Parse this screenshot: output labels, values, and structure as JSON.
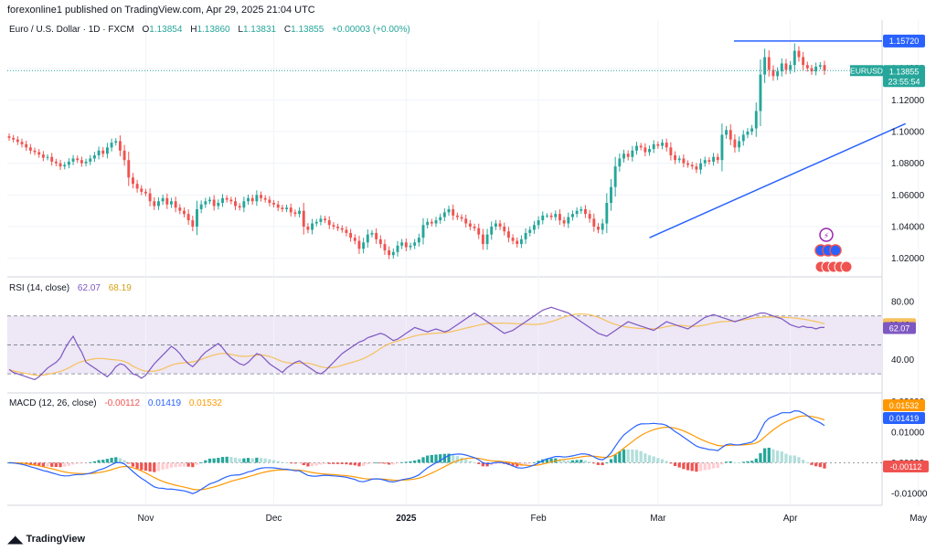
{
  "publish_line": "forexonline1 published on TradingView.com, Apr 29, 2025 21:04 UTC",
  "logo_text": "TradingView",
  "legend": {
    "symbol": "Euro / U.S. Dollar · 1D · FXCM",
    "o_label": "O",
    "o": "1.13854",
    "h_label": "H",
    "h": "1.13860",
    "l_label": "L",
    "l": "1.13831",
    "c_label": "C",
    "c": "1.13855",
    "change": "+0.00003 (+0.00%)"
  },
  "rsi_legend": {
    "name": "RSI (14, close)",
    "v1": "62.07",
    "v2": "68.19"
  },
  "macd_legend": {
    "name": "MACD (12, 26, close)",
    "v1": "-0.00112",
    "v2": "0.01419",
    "v3": "0.01532"
  },
  "price_tag": {
    "symbol": "EURUSD",
    "price": "1.13855",
    "countdown": "23:55:54"
  },
  "resistance_tag": "1.15720",
  "rsi_tags": [
    "68.19",
    "62.07"
  ],
  "macd_tags": [
    "0.01532",
    "0.01419",
    "-0.00112"
  ],
  "colors": {
    "up": "#26a69a",
    "down": "#ef5350",
    "trendline": "#2962ff",
    "rsi_line": "#7e57c2",
    "rsi_ma": "#f7c15a",
    "macd_line": "#2962ff",
    "signal_line": "#ff9800",
    "rsi_band": "#ede7f6"
  },
  "chart_data": [
    {
      "type": "candlestick",
      "symbol": "EURUSD",
      "y_ticks": [
        "1.02000",
        "1.04000",
        "1.06000",
        "1.08000",
        "1.10000",
        "1.12000",
        "1.14000"
      ],
      "ylim": [
        1.01,
        1.16
      ],
      "x_ticks": [
        "Nov",
        "Dec",
        "2025",
        "Feb",
        "Mar",
        "Apr",
        "May"
      ],
      "x_tick_days": [
        32,
        62,
        93,
        124,
        152,
        183,
        213
      ],
      "resistance": 1.1572,
      "trendline": [
        [
          150,
          1.033
        ],
        [
          210,
          1.105
        ]
      ],
      "closes": [
        1.096,
        1.095,
        1.0935,
        1.092,
        1.09,
        1.088,
        1.087,
        1.0855,
        1.0835,
        1.084,
        1.081,
        1.08,
        1.078,
        1.079,
        1.081,
        1.083,
        1.082,
        1.08,
        1.081,
        1.083,
        1.085,
        1.088,
        1.086,
        1.09,
        1.093,
        1.094,
        1.088,
        1.082,
        1.071,
        1.067,
        1.064,
        1.062,
        1.061,
        1.056,
        1.053,
        1.056,
        1.058,
        1.054,
        1.056,
        1.052,
        1.05,
        1.048,
        1.044,
        1.04,
        1.051,
        1.054,
        1.056,
        1.057,
        1.053,
        1.055,
        1.058,
        1.057,
        1.056,
        1.053,
        1.052,
        1.056,
        1.058,
        1.056,
        1.06,
        1.058,
        1.057,
        1.055,
        1.054,
        1.052,
        1.051,
        1.052,
        1.049,
        1.048,
        1.05,
        1.04,
        1.038,
        1.042,
        1.043,
        1.045,
        1.044,
        1.041,
        1.04,
        1.039,
        1.038,
        1.036,
        1.033,
        1.031,
        1.026,
        1.03,
        1.035,
        1.036,
        1.032,
        1.029,
        1.025,
        1.022,
        1.024,
        1.028,
        1.03,
        1.027,
        1.028,
        1.03,
        1.033,
        1.041,
        1.043,
        1.042,
        1.044,
        1.046,
        1.049,
        1.051,
        1.047,
        1.046,
        1.045,
        1.042,
        1.04,
        1.039,
        1.035,
        1.029,
        1.035,
        1.04,
        1.042,
        1.04,
        1.037,
        1.033,
        1.031,
        1.029,
        1.032,
        1.036,
        1.038,
        1.041,
        1.044,
        1.047,
        1.047,
        1.046,
        1.048,
        1.044,
        1.042,
        1.046,
        1.048,
        1.05,
        1.051,
        1.048,
        1.045,
        1.04,
        1.038,
        1.042,
        1.055,
        1.065,
        1.078,
        1.083,
        1.086,
        1.084,
        1.088,
        1.091,
        1.09,
        1.087,
        1.089,
        1.092,
        1.091,
        1.093,
        1.09,
        1.085,
        1.082,
        1.083,
        1.08,
        1.079,
        1.078,
        1.076,
        1.08,
        1.082,
        1.081,
        1.084,
        1.082,
        1.098,
        1.101,
        1.095,
        1.09,
        1.094,
        1.098,
        1.1,
        1.102,
        1.113,
        1.136,
        1.147,
        1.139,
        1.135,
        1.138,
        1.143,
        1.139,
        1.142,
        1.151,
        1.147,
        1.142,
        1.14,
        1.138,
        1.141,
        1.142,
        1.1385
      ],
      "rsi": [
        33,
        31,
        30,
        29,
        28,
        27,
        26,
        28,
        31,
        34,
        36,
        38,
        41,
        47,
        52,
        56,
        50,
        45,
        38,
        36,
        34,
        32,
        30,
        28,
        31,
        35,
        37,
        36,
        33,
        30,
        29,
        27,
        29,
        33,
        37,
        40,
        43,
        46,
        49,
        47,
        44,
        40,
        37,
        35,
        38,
        42,
        45,
        47,
        49,
        51,
        48,
        44,
        41,
        39,
        37,
        36,
        38,
        41,
        44,
        43,
        40,
        37,
        35,
        33,
        31,
        34,
        36,
        38,
        39,
        37,
        35,
        33,
        31,
        30,
        32,
        35,
        38,
        41,
        44,
        46,
        48,
        50,
        52,
        53,
        55,
        56,
        57,
        58,
        57,
        55,
        53,
        54,
        56,
        58,
        60,
        62,
        61,
        60,
        59,
        60,
        61,
        60,
        59,
        60,
        62,
        64,
        66,
        68,
        70,
        72,
        70,
        68,
        66,
        64,
        62,
        60,
        58,
        59,
        60,
        62,
        64,
        66,
        68,
        70,
        72,
        74,
        75,
        76,
        75,
        74,
        73,
        72,
        70,
        68,
        66,
        64,
        62,
        60,
        58,
        57,
        56,
        58,
        60,
        62,
        64,
        66,
        65,
        64,
        63,
        62,
        61,
        60,
        62,
        64,
        66,
        65,
        64,
        63,
        62,
        61,
        63,
        65,
        67,
        69,
        70,
        71,
        70,
        69,
        68,
        67,
        66,
        67,
        68,
        69,
        70,
        71,
        72,
        72,
        71,
        70,
        69,
        68,
        66,
        64,
        63,
        62,
        63,
        62,
        62,
        61,
        62,
        62
      ],
      "rsi_ylim": [
        20,
        85
      ],
      "rsi_ticks": [
        "40.00",
        "80.00"
      ],
      "rsi_bands": [
        70,
        50,
        30
      ],
      "macd_ylim": [
        -0.013,
        0.021
      ],
      "macd_ticks": [
        "-0.01000",
        "0.00000",
        "0.01000",
        "0.02000"
      ]
    }
  ]
}
